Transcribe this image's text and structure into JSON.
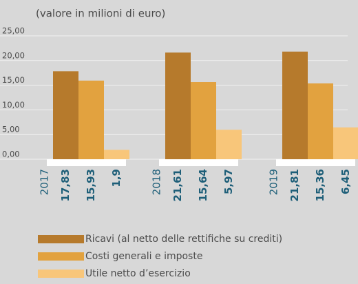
{
  "chart_data": {
    "type": "bar",
    "title": "(valore in milioni di euro)",
    "categories": [
      "2017",
      "2018",
      "2019"
    ],
    "series": [
      {
        "name": "Ricavi (al netto delle rettifiche su crediti)",
        "color": "#b67a2c",
        "values": [
          17.83,
          21.61,
          21.81
        ],
        "value_labels": [
          "17,83",
          "21,61",
          "21,81"
        ]
      },
      {
        "name": "Costi generali e imposte",
        "color": "#e2a23f",
        "values": [
          15.93,
          15.64,
          15.36
        ],
        "value_labels": [
          "15,93",
          "15,64",
          "15,36"
        ]
      },
      {
        "name": "Utile netto d’esercizio",
        "color": "#f8c67a",
        "values": [
          1.9,
          5.97,
          6.45
        ],
        "value_labels": [
          "1,9",
          "5,97",
          "6,45"
        ]
      }
    ],
    "ylim": [
      0,
      25
    ],
    "yticks": [
      {
        "value": 0,
        "label": "0,00"
      },
      {
        "value": 5,
        "label": "5,00"
      },
      {
        "value": 10,
        "label": "10,00"
      },
      {
        "value": 15,
        "label": "15,00"
      },
      {
        "value": 20,
        "label": "20,00"
      },
      {
        "value": 25,
        "label": "25,00"
      }
    ],
    "grid": true,
    "legend": "bottom"
  }
}
